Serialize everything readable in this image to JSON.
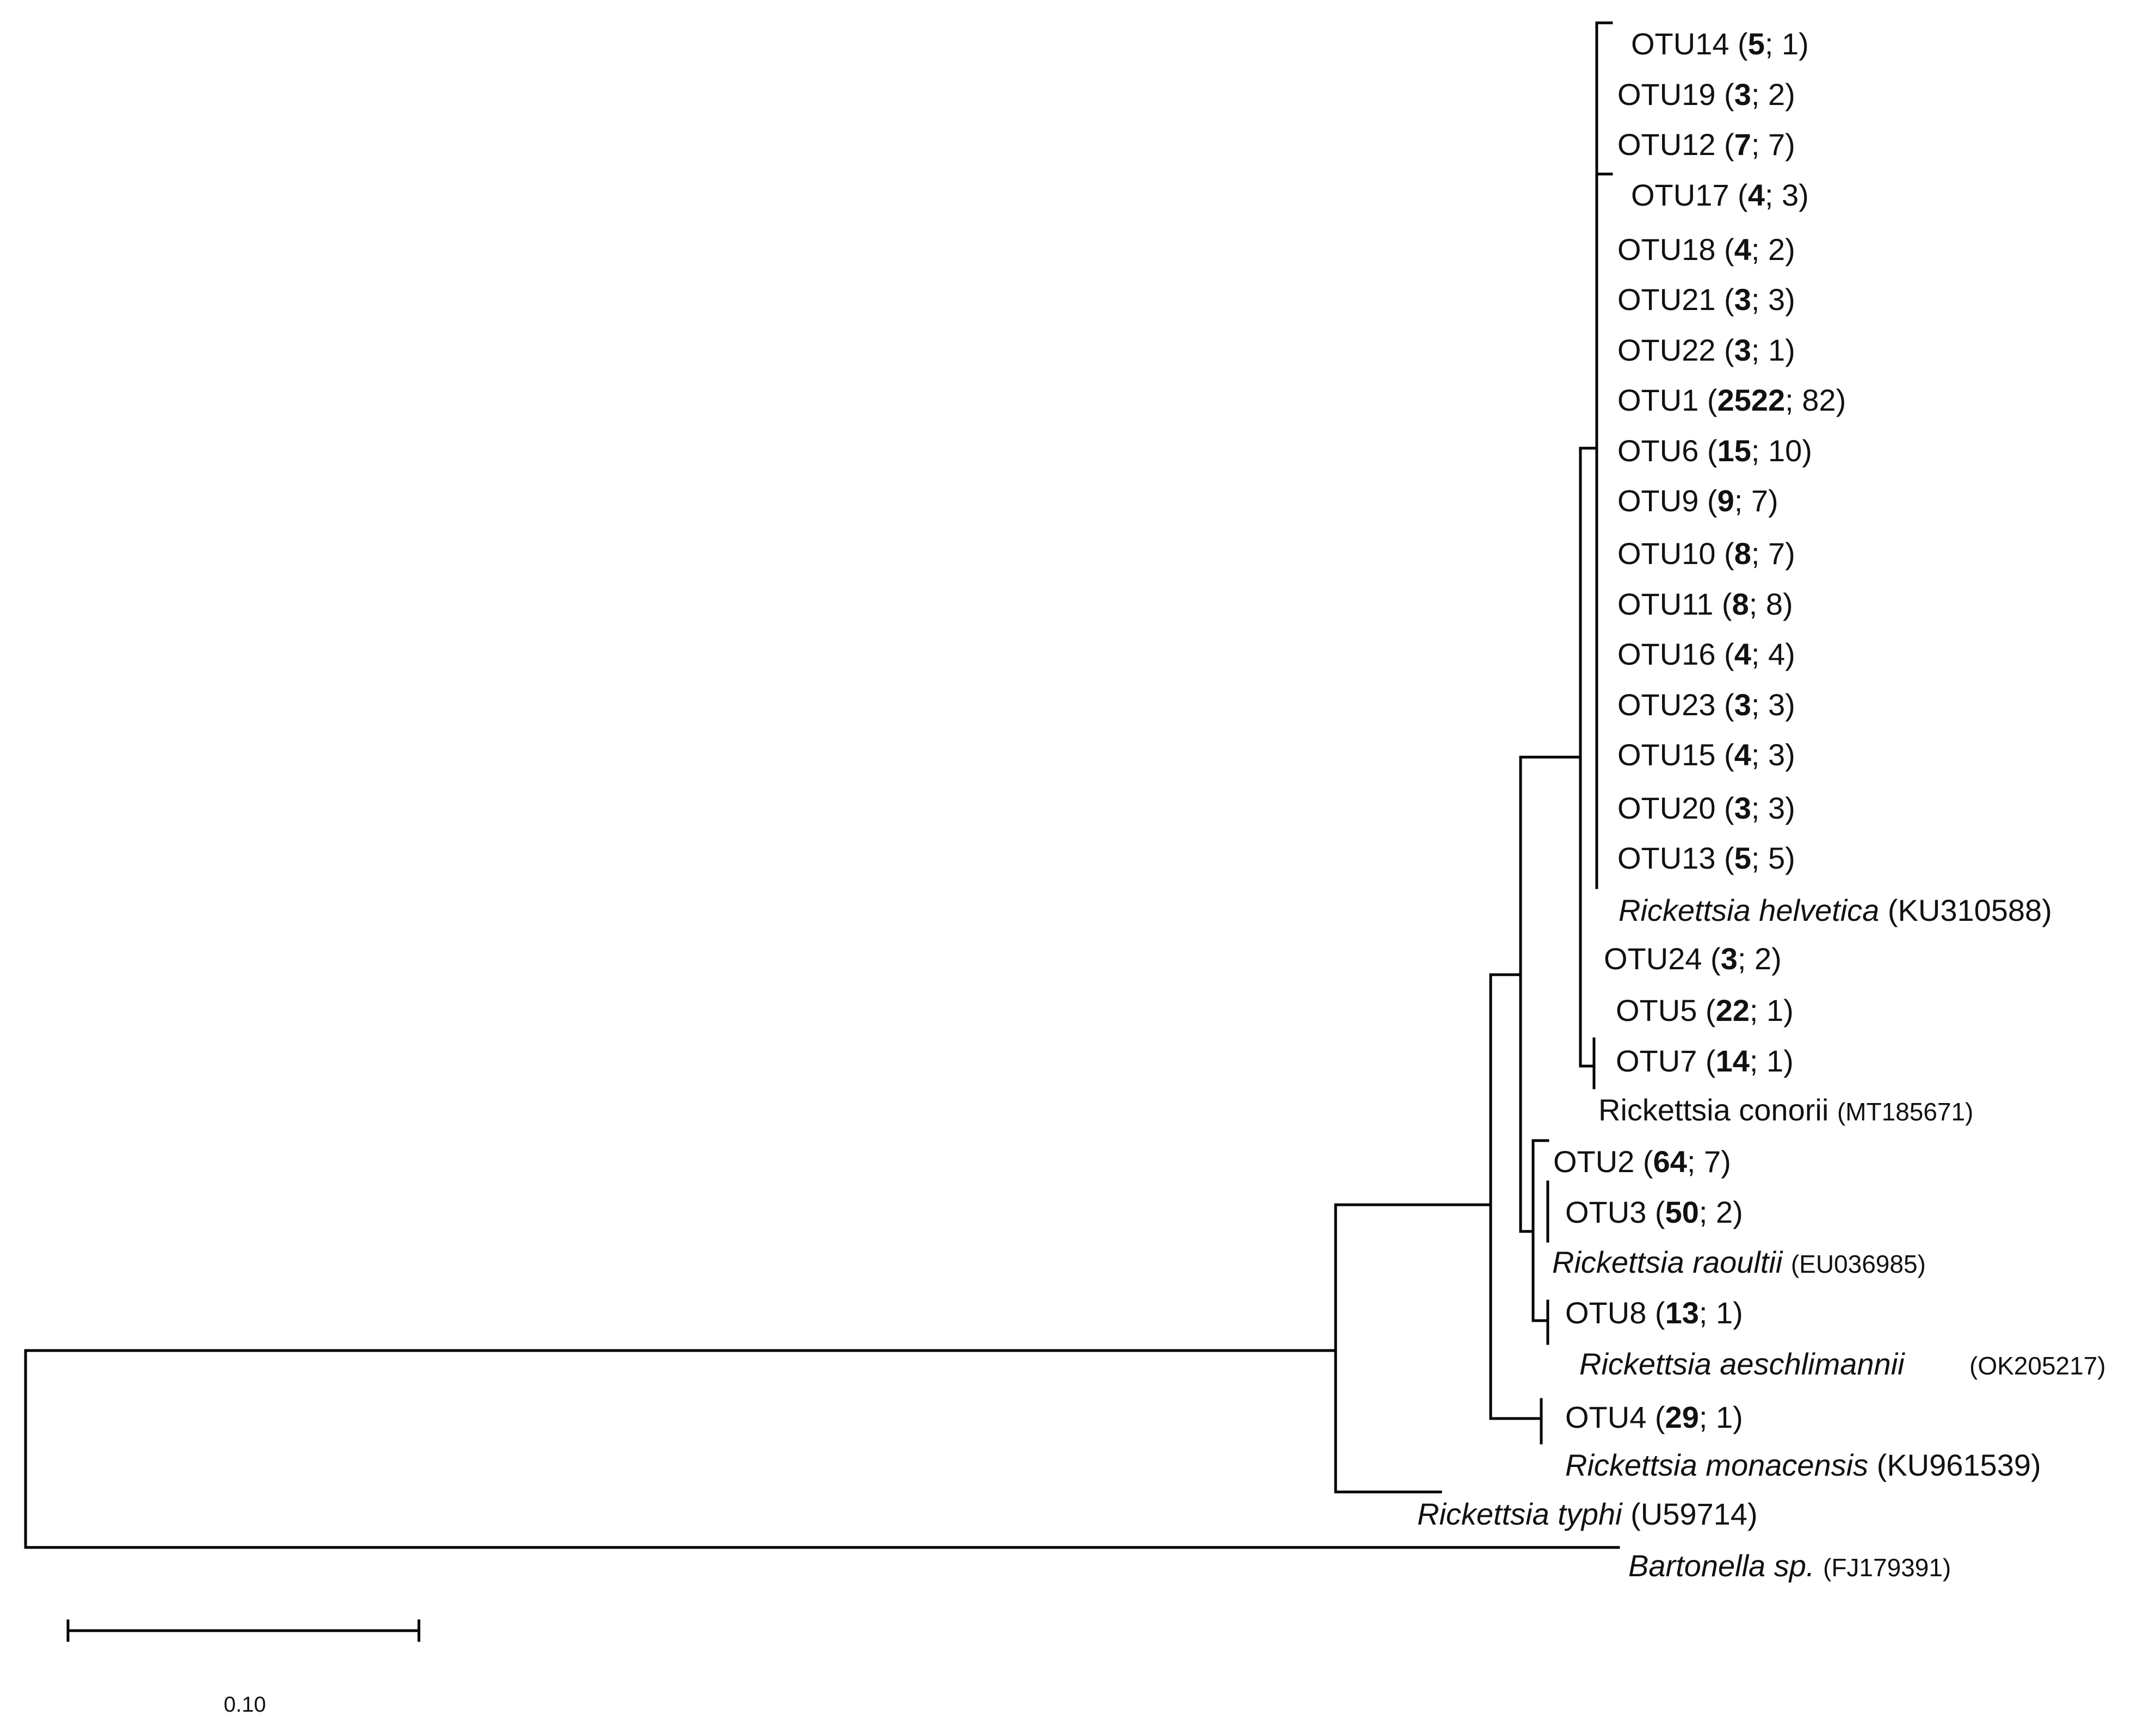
{
  "tree": {
    "otus": [
      {
        "name": "OTU14",
        "reads": "5",
        "samples": "1"
      },
      {
        "name": "OTU19",
        "reads": "3",
        "samples": "2"
      },
      {
        "name": "OTU12",
        "reads": "7",
        "samples": "7"
      },
      {
        "name": "OTU17",
        "reads": "4",
        "samples": "3"
      },
      {
        "name": "OTU18",
        "reads": "4",
        "samples": "2"
      },
      {
        "name": "OTU21",
        "reads": "3",
        "samples": "3"
      },
      {
        "name": "OTU22",
        "reads": "3",
        "samples": "1"
      },
      {
        "name": "OTU1",
        "reads": "2522",
        "samples": "82"
      },
      {
        "name": "OTU6",
        "reads": "15",
        "samples": "10"
      },
      {
        "name": "OTU9",
        "reads": "9",
        "samples": "7"
      },
      {
        "name": "OTU10",
        "reads": "8",
        "samples": "7"
      },
      {
        "name": "OTU11",
        "reads": "8",
        "samples": "8"
      },
      {
        "name": "OTU16",
        "reads": "4",
        "samples": "4"
      },
      {
        "name": "OTU23",
        "reads": "3",
        "samples": "3"
      },
      {
        "name": "OTU15",
        "reads": "4",
        "samples": "3"
      },
      {
        "name": "OTU20",
        "reads": "3",
        "samples": "3"
      },
      {
        "name": "OTU13",
        "reads": "5",
        "samples": "5"
      },
      {
        "name": "OTU24",
        "reads": "3",
        "samples": "2"
      },
      {
        "name": "OTU5",
        "reads": "22",
        "samples": "1"
      },
      {
        "name": "OTU7",
        "reads": "14",
        "samples": "1"
      },
      {
        "name": "OTU2",
        "reads": "64",
        "samples": "7"
      },
      {
        "name": "OTU3",
        "reads": "50",
        "samples": "2"
      },
      {
        "name": "OTU8",
        "reads": "13",
        "samples": "1"
      },
      {
        "name": "OTU4",
        "reads": "29",
        "samples": "1"
      }
    ],
    "references": [
      {
        "species": "Rickettsia helvetica",
        "accession": "(KU310588)"
      },
      {
        "species": "Rickettsia conorii",
        "accession": "(MT185671)"
      },
      {
        "species": "Rickettsia raoultii",
        "accession": "(EU036985)"
      },
      {
        "species": "Rickettsia aeschlimannii",
        "accession": "(OK205217)"
      },
      {
        "species": "Rickettsia monacensis",
        "accession": "(KU961539)"
      },
      {
        "species": "Rickettsia typhi",
        "accession": "(U59714)"
      },
      {
        "species": "Bartonella sp.",
        "accession": "(FJ179391)"
      }
    ],
    "scale_bar": {
      "label": "0.10"
    }
  }
}
